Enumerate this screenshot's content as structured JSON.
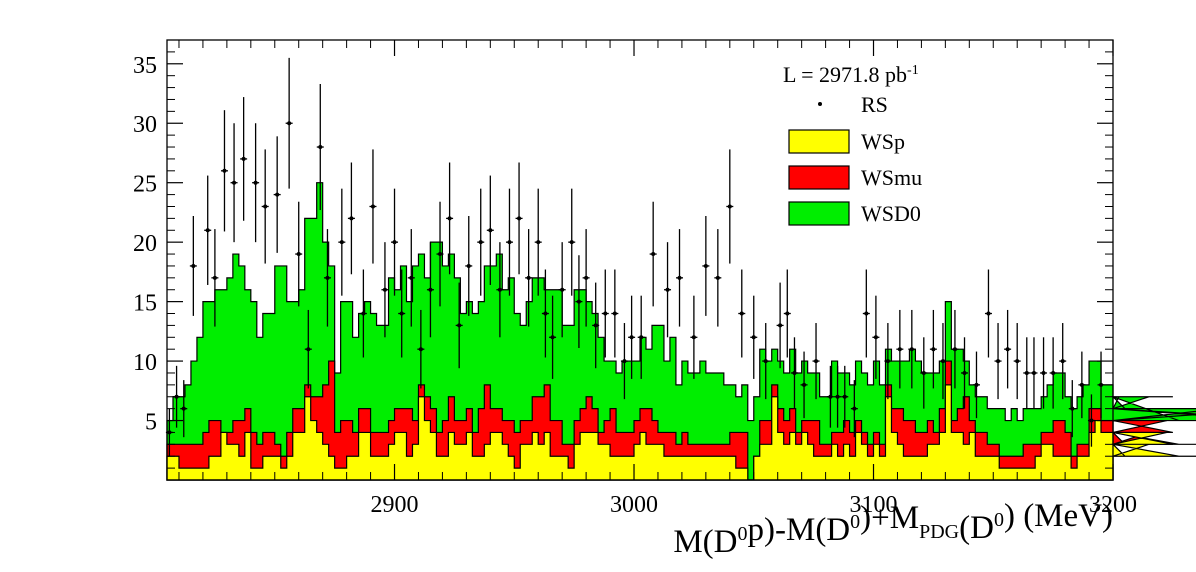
{
  "chart_data": {
    "type": "histogram",
    "stacked": true,
    "luminosity": {
      "prefix": "L = 2971.8 pb",
      "sup": "-1"
    },
    "xlabel": {
      "parts": [
        {
          "t": "M(D"
        },
        {
          "t": "0",
          "sup": true
        },
        {
          "t": "p)-M(D"
        },
        {
          "t": "0",
          "sup": true
        },
        {
          "t": ")+M"
        },
        {
          "t": "PDG",
          "sub": true
        },
        {
          "t": "(D"
        },
        {
          "t": "0",
          "sup": true
        },
        {
          "t": ") (MeV)"
        }
      ]
    },
    "ylabel": "",
    "xlim": [
      2805,
      3200
    ],
    "ylim": [
      0,
      37
    ],
    "bin_width": 2.5,
    "x_ticks": [
      "2900",
      "3000",
      "3100",
      "3200"
    ],
    "y_ticks": [
      "5",
      "10",
      "15",
      "20",
      "25",
      "30",
      "35"
    ],
    "grid": false,
    "legend_position": "top-right",
    "legend": [
      {
        "label": "RS",
        "kind": "marker"
      },
      {
        "label": "WSp",
        "kind": "fill",
        "color": "#ffff00"
      },
      {
        "label": "WSmu",
        "kind": "fill",
        "color": "#ff0000"
      },
      {
        "label": "WSD0",
        "kind": "fill",
        "color": "#00ee00"
      }
    ],
    "colors": {
      "wsp": "#ffff00",
      "wsmu": "#ff0000",
      "wsd0": "#00ee00"
    },
    "series": [
      {
        "name": "WSp",
        "values": [
          2,
          2,
          1,
          1,
          1,
          1,
          1,
          2,
          2,
          4,
          3,
          3,
          2,
          4,
          1,
          1,
          2,
          2,
          2,
          1,
          2,
          4,
          4,
          7,
          5,
          4,
          3,
          2,
          1,
          1,
          2,
          2,
          4,
          4,
          2,
          2,
          2,
          3,
          4,
          4,
          2,
          3,
          7,
          5,
          4,
          2,
          2,
          4,
          3,
          3,
          4,
          2,
          2,
          3,
          4,
          4,
          3,
          2,
          1,
          3,
          3,
          4,
          3,
          4,
          2,
          2,
          2,
          1,
          3,
          4,
          4,
          4,
          3,
          3,
          2,
          2,
          2,
          2,
          3,
          4,
          3,
          3,
          3,
          2,
          2,
          2,
          2,
          2,
          2,
          2,
          2,
          2,
          2,
          2,
          2,
          1,
          1,
          0,
          2,
          3,
          3,
          7,
          4,
          3,
          4,
          3,
          4,
          3,
          2,
          2,
          2,
          3,
          2,
          3,
          2,
          4,
          3,
          2,
          3,
          2,
          7,
          4,
          3,
          2,
          2,
          2,
          2,
          3,
          3,
          4,
          8,
          4,
          4,
          3,
          4,
          2,
          2,
          2,
          2,
          1,
          1,
          1,
          1,
          1,
          1,
          2,
          3,
          3,
          2,
          2,
          2,
          1,
          2,
          2,
          4,
          5,
          4,
          4,
          3,
          3,
          2,
          2,
          2,
          2,
          3,
          3,
          3,
          4,
          3,
          2,
          2,
          2,
          2,
          2,
          2,
          2,
          2,
          2,
          2,
          2,
          2,
          2,
          2,
          2,
          2,
          2,
          2,
          2,
          2,
          2,
          2,
          2,
          2,
          2,
          2,
          2,
          2,
          2
        ]
      },
      {
        "name": "WSmu",
        "values": [
          1,
          1,
          2,
          2,
          2,
          2,
          3,
          3,
          3,
          0,
          1,
          2,
          3,
          2,
          3,
          2,
          2,
          2,
          1,
          1,
          2,
          2,
          2,
          1,
          2,
          3,
          5,
          8,
          3,
          4,
          3,
          2,
          2,
          2,
          2,
          2,
          2,
          2,
          2,
          2,
          4,
          2,
          1,
          2,
          2,
          2,
          3,
          3,
          2,
          2,
          2,
          2,
          4,
          5,
          2,
          2,
          2,
          3,
          3,
          2,
          2,
          3,
          4,
          4,
          3,
          3,
          1,
          2,
          2,
          2,
          3,
          2,
          1,
          2,
          4,
          2,
          2,
          2,
          2,
          2,
          3,
          2,
          1,
          2,
          2,
          1,
          2,
          1,
          1,
          1,
          1,
          1,
          1,
          1,
          2,
          3,
          3,
          0,
          0,
          2,
          2,
          1,
          2,
          2,
          2,
          1,
          1,
          2,
          3,
          1,
          1,
          1,
          2,
          2,
          2,
          1,
          1,
          1,
          1,
          1,
          1,
          2,
          3,
          3,
          3,
          2,
          2,
          2,
          1,
          2,
          2,
          1,
          2,
          4,
          1,
          2,
          2,
          1,
          1,
          1,
          1,
          1,
          1,
          2,
          2,
          1,
          1,
          1,
          3,
          3,
          2,
          1,
          1,
          1,
          2,
          1,
          1,
          1,
          1,
          1,
          1,
          1,
          1,
          1,
          1,
          1,
          1,
          1,
          1,
          1,
          1,
          1,
          1,
          1,
          1,
          1,
          1,
          1,
          1,
          1,
          1,
          1,
          1,
          1,
          1,
          1,
          1,
          1,
          1,
          1,
          1,
          1,
          1,
          1,
          1,
          1,
          1,
          1
        ]
      },
      {
        "name": "WSD0",
        "values": [
          2,
          4,
          4,
          5,
          7,
          9,
          11,
          10,
          11,
          12,
          13,
          14,
          13,
          10,
          11,
          9,
          10,
          10,
          15,
          16,
          11,
          9,
          10,
          14,
          15,
          18,
          12,
          8,
          5,
          10,
          10,
          8,
          8,
          9,
          10,
          9,
          9,
          12,
          10,
          12,
          9,
          13,
          11,
          10,
          14,
          16,
          13,
          12,
          12,
          9,
          9,
          10,
          9,
          10,
          12,
          13,
          11,
          12,
          10,
          8,
          10,
          10,
          10,
          8,
          11,
          11,
          10,
          10,
          11,
          10,
          8,
          8,
          8,
          5,
          4,
          5,
          6,
          6,
          5,
          6,
          5,
          8,
          9,
          6,
          8,
          5,
          6,
          6,
          6,
          7,
          6,
          6,
          6,
          5,
          4,
          3,
          4,
          5,
          5,
          6,
          5,
          3,
          4,
          4,
          5,
          5,
          5,
          4,
          4,
          4,
          4,
          6,
          5,
          4,
          4,
          5,
          5,
          5,
          6,
          5,
          3,
          4,
          4,
          5,
          6,
          6,
          5,
          4,
          5,
          4,
          5,
          6,
          5,
          3,
          3,
          3,
          3,
          3,
          3,
          4,
          3,
          4,
          3,
          3,
          3,
          3,
          3,
          4,
          4,
          4,
          3,
          4,
          4,
          5,
          4,
          4,
          3,
          3,
          2,
          3,
          3,
          3,
          3,
          3,
          3,
          3,
          3,
          2,
          3,
          2,
          2,
          2,
          2,
          2,
          2,
          2,
          3,
          3,
          3,
          3,
          3,
          3,
          3,
          3,
          2,
          2,
          3,
          3,
          3,
          2,
          2,
          2,
          2,
          2,
          2,
          2,
          2,
          2
        ]
      },
      {
        "name": "RS",
        "points": [
          {
            "x": 2806,
            "y": 4,
            "e": 2
          },
          {
            "x": 2809,
            "y": 7,
            "e": 2.6
          },
          {
            "x": 2812,
            "y": 6,
            "e": 2.4
          },
          {
            "x": 2816,
            "y": 18,
            "e": 4.2
          },
          {
            "x": 2822,
            "y": 21,
            "e": 4.6
          },
          {
            "x": 2825,
            "y": 17,
            "e": 4.1
          },
          {
            "x": 2829,
            "y": 26,
            "e": 5.1
          },
          {
            "x": 2833,
            "y": 25,
            "e": 5
          },
          {
            "x": 2837,
            "y": 27,
            "e": 5.2
          },
          {
            "x": 2842,
            "y": 25,
            "e": 5
          },
          {
            "x": 2846,
            "y": 23,
            "e": 4.8
          },
          {
            "x": 2851,
            "y": 24,
            "e": 4.9
          },
          {
            "x": 2856,
            "y": 30,
            "e": 5.5
          },
          {
            "x": 2860,
            "y": 19,
            "e": 4.4
          },
          {
            "x": 2864,
            "y": 11,
            "e": 3.3
          },
          {
            "x": 2869,
            "y": 28,
            "e": 5.3
          },
          {
            "x": 2872,
            "y": 17,
            "e": 4.1
          },
          {
            "x": 2878,
            "y": 20,
            "e": 4.5
          },
          {
            "x": 2882,
            "y": 22,
            "e": 4.7
          },
          {
            "x": 2887,
            "y": 14,
            "e": 3.7
          },
          {
            "x": 2891,
            "y": 23,
            "e": 4.8
          },
          {
            "x": 2896,
            "y": 16,
            "e": 4
          },
          {
            "x": 2900,
            "y": 20,
            "e": 4.5
          },
          {
            "x": 2903,
            "y": 14,
            "e": 3.7
          },
          {
            "x": 2907,
            "y": 17,
            "e": 4.1
          },
          {
            "x": 2911,
            "y": 11,
            "e": 3.3
          },
          {
            "x": 2915,
            "y": 16,
            "e": 4
          },
          {
            "x": 2919,
            "y": 19,
            "e": 4.4
          },
          {
            "x": 2923,
            "y": 22,
            "e": 4.7
          },
          {
            "x": 2927,
            "y": 13,
            "e": 3.6
          },
          {
            "x": 2931,
            "y": 18,
            "e": 4.2
          },
          {
            "x": 2936,
            "y": 20,
            "e": 4.5
          },
          {
            "x": 2940,
            "y": 21,
            "e": 4.6
          },
          {
            "x": 2944,
            "y": 16,
            "e": 4
          },
          {
            "x": 2948,
            "y": 20,
            "e": 4.5
          },
          {
            "x": 2952,
            "y": 22,
            "e": 4.7
          },
          {
            "x": 2956,
            "y": 17,
            "e": 4.1
          },
          {
            "x": 2960,
            "y": 20,
            "e": 4.5
          },
          {
            "x": 2963,
            "y": 14,
            "e": 3.7
          },
          {
            "x": 2966,
            "y": 12,
            "e": 3.5
          },
          {
            "x": 2970,
            "y": 16,
            "e": 4
          },
          {
            "x": 2974,
            "y": 20,
            "e": 4.5
          },
          {
            "x": 2977,
            "y": 15,
            "e": 3.9
          },
          {
            "x": 2980,
            "y": 17,
            "e": 4.1
          },
          {
            "x": 2984,
            "y": 13,
            "e": 3.6
          },
          {
            "x": 2988,
            "y": 14,
            "e": 3.7
          },
          {
            "x": 2992,
            "y": 14,
            "e": 3.7
          },
          {
            "x": 2996,
            "y": 10,
            "e": 3.2
          },
          {
            "x": 2999,
            "y": 12,
            "e": 3.5
          },
          {
            "x": 3003,
            "y": 12,
            "e": 3.5
          },
          {
            "x": 3008,
            "y": 19,
            "e": 4.4
          },
          {
            "x": 3014,
            "y": 16,
            "e": 4
          },
          {
            "x": 3019,
            "y": 17,
            "e": 4.1
          },
          {
            "x": 3025,
            "y": 12,
            "e": 3.5
          },
          {
            "x": 3030,
            "y": 18,
            "e": 4.2
          },
          {
            "x": 3035,
            "y": 17,
            "e": 4.1
          },
          {
            "x": 3040,
            "y": 23,
            "e": 4.8
          },
          {
            "x": 3045,
            "y": 14,
            "e": 3.7
          },
          {
            "x": 3050,
            "y": 12,
            "e": 3.5
          },
          {
            "x": 3055,
            "y": 10,
            "e": 3.2
          },
          {
            "x": 3061,
            "y": 13,
            "e": 3.6
          },
          {
            "x": 3064,
            "y": 14,
            "e": 3.7
          },
          {
            "x": 3067,
            "y": 9,
            "e": 3
          },
          {
            "x": 3071,
            "y": 8,
            "e": 2.8
          },
          {
            "x": 3076,
            "y": 10,
            "e": 3.2
          },
          {
            "x": 3082,
            "y": 7,
            "e": 2.6
          },
          {
            "x": 3085,
            "y": 7,
            "e": 2.6
          },
          {
            "x": 3088,
            "y": 7,
            "e": 2.6
          },
          {
            "x": 3092,
            "y": 6,
            "e": 2.4
          },
          {
            "x": 3097,
            "y": 14,
            "e": 3.7
          },
          {
            "x": 3101,
            "y": 12,
            "e": 3.5
          },
          {
            "x": 3106,
            "y": 10,
            "e": 3.2
          },
          {
            "x": 3111,
            "y": 11,
            "e": 3.3
          },
          {
            "x": 3116,
            "y": 11,
            "e": 3.3
          },
          {
            "x": 3121,
            "y": 9,
            "e": 3
          },
          {
            "x": 3125,
            "y": 11,
            "e": 3.3
          },
          {
            "x": 3129,
            "y": 10,
            "e": 3.2
          },
          {
            "x": 3134,
            "y": 11,
            "e": 3.3
          },
          {
            "x": 3138,
            "y": 9,
            "e": 3
          },
          {
            "x": 3143,
            "y": 8,
            "e": 2.8
          },
          {
            "x": 3148,
            "y": 14,
            "e": 3.7
          },
          {
            "x": 3152,
            "y": 10,
            "e": 3.2
          },
          {
            "x": 3156,
            "y": 11,
            "e": 3.3
          },
          {
            "x": 3160,
            "y": 10,
            "e": 3.2
          },
          {
            "x": 3164,
            "y": 9,
            "e": 3
          },
          {
            "x": 3167,
            "y": 9,
            "e": 3
          },
          {
            "x": 3171,
            "y": 9,
            "e": 3
          },
          {
            "x": 3175,
            "y": 9,
            "e": 3
          },
          {
            "x": 3179,
            "y": 10,
            "e": 3.2
          },
          {
            "x": 3183,
            "y": 6,
            "e": 2.4
          },
          {
            "x": 3187,
            "y": 8,
            "e": 2.8
          },
          {
            "x": 3191,
            "y": 5,
            "e": 2.2
          },
          {
            "x": 3195,
            "y": 8,
            "e": 2.8
          }
        ]
      }
    ]
  }
}
